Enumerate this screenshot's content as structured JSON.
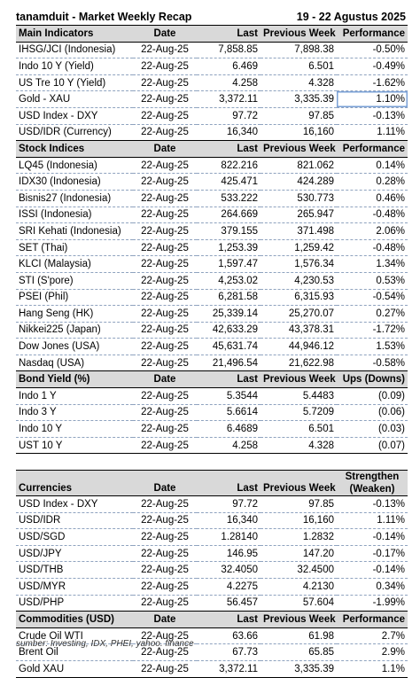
{
  "header": {
    "title": "tanamduit - Market Weekly Recap",
    "period": "19 - 22 Agustus 2025"
  },
  "main_indicators": {
    "headers": [
      "Main Indicators",
      "Date",
      "Last",
      "Previous Week",
      "Performance"
    ],
    "rows": [
      [
        "IHSG/JCI (Indonesia)",
        "22-Aug-25",
        "7,858.85",
        "7,898.38",
        "-0.50%"
      ],
      [
        "Indo 10 Y (Yield)",
        "22-Aug-25",
        "6.469",
        "6.501",
        "-0.49%"
      ],
      [
        "US Tre 10 Y (Yield)",
        "22-Aug-25",
        "4.258",
        "4.328",
        "-1.62%"
      ],
      [
        "Gold - XAU",
        "22-Aug-25",
        "3,372.11",
        "3,335.39",
        "1.10%"
      ],
      [
        "USD Index - DXY",
        "22-Aug-25",
        "97.72",
        "97.85",
        "-0.13%"
      ],
      [
        "USD/IDR (Currency)",
        "22-Aug-25",
        "16,340",
        "16,160",
        "1.11%"
      ]
    ]
  },
  "stock_indices": {
    "headers": [
      "Stock Indices",
      "Date",
      "Last",
      "Previous Week",
      "Performance"
    ],
    "rows": [
      [
        "LQ45 (Indonesia)",
        "22-Aug-25",
        "822.216",
        "821.062",
        "0.14%"
      ],
      [
        "IDX30 (Indonesia)",
        "22-Aug-25",
        "425.471",
        "424.289",
        "0.28%"
      ],
      [
        "Bisnis27 (Indonesia)",
        "22-Aug-25",
        "533.222",
        "530.773",
        "0.46%"
      ],
      [
        "ISSI (Indonesia)",
        "22-Aug-25",
        "264.669",
        "265.947",
        "-0.48%"
      ],
      [
        "SRI Kehati (Indonesia)",
        "22-Aug-25",
        "379.155",
        "371.498",
        "2.06%"
      ],
      [
        "SET (Thai)",
        "22-Aug-25",
        "1,253.39",
        "1,259.42",
        "-0.48%"
      ],
      [
        "KLCI (Malaysia)",
        "22-Aug-25",
        "1,597.47",
        "1,576.34",
        "1.34%"
      ],
      [
        "STI (S'pore)",
        "22-Aug-25",
        "4,253.02",
        "4,230.53",
        "0.53%"
      ],
      [
        "PSEI (Phil)",
        "22-Aug-25",
        "6,281.58",
        "6,315.93",
        "-0.54%"
      ],
      [
        "Hang Seng (HK)",
        "22-Aug-25",
        "25,339.14",
        "25,270.07",
        "0.27%"
      ],
      [
        "Nikkei225 (Japan)",
        "22-Aug-25",
        "42,633.29",
        "43,378.31",
        "-1.72%"
      ],
      [
        "Dow Jones (USA)",
        "22-Aug-25",
        "45,631.74",
        "44,946.12",
        "1.53%"
      ],
      [
        "Nasdaq (USA)",
        "22-Aug-25",
        "21,496.54",
        "21,622.98",
        "-0.58%"
      ]
    ]
  },
  "bond_yield": {
    "headers": [
      "Bond Yield (%)",
      "Date",
      "Last",
      "Previous Week",
      "Ups (Downs)"
    ],
    "rows": [
      [
        "Indo 1 Y",
        "22-Aug-25",
        "5.3544",
        "5.4483",
        "(0.09)"
      ],
      [
        "Indo 3 Y",
        "22-Aug-25",
        "5.6614",
        "5.7209",
        "(0.06)"
      ],
      [
        "Indo 10 Y",
        "22-Aug-25",
        "6.4689",
        "6.501",
        "(0.03)"
      ],
      [
        "UST 10 Y",
        "22-Aug-25",
        "4.258",
        "4.328",
        "(0.07)"
      ]
    ]
  },
  "currencies": {
    "headers": [
      "Currencies",
      "Date",
      "Last",
      "Previous Week",
      "Strengthen (Weaken)"
    ],
    "rows": [
      [
        "USD Index - DXY",
        "22-Aug-25",
        "97.72",
        "97.85",
        "-0.13%"
      ],
      [
        "USD/IDR",
        "22-Aug-25",
        "16,340",
        "16,160",
        "1.11%"
      ],
      [
        "USD/SGD",
        "22-Aug-25",
        "1.28140",
        "1.2832",
        "-0.14%"
      ],
      [
        "USD/JPY",
        "22-Aug-25",
        "146.95",
        "147.20",
        "-0.17%"
      ],
      [
        "USD/THB",
        "22-Aug-25",
        "32.4050",
        "32.4500",
        "-0.14%"
      ],
      [
        "USD/MYR",
        "22-Aug-25",
        "4.2275",
        "4.2130",
        "0.34%"
      ],
      [
        "USD/PHP",
        "22-Aug-25",
        "56.457",
        "57.604",
        "-1.99%"
      ]
    ]
  },
  "commodities": {
    "headers": [
      "Commodities (USD)",
      "Date",
      "Last",
      "Previous Week",
      "Performance"
    ],
    "rows": [
      [
        "Crude Oil WTI",
        "22-Aug-25",
        "63.66",
        "61.98",
        "2.7%"
      ],
      [
        "Brent Oil",
        "22-Aug-25",
        "67.73",
        "65.85",
        "2.9%"
      ],
      [
        "Gold XAU",
        "22-Aug-25",
        "3,372.11",
        "3,335.39",
        "1.1%"
      ]
    ]
  },
  "footer": {
    "source": "sumber: Investing, IDX, PHEI, yahoo. finance"
  }
}
